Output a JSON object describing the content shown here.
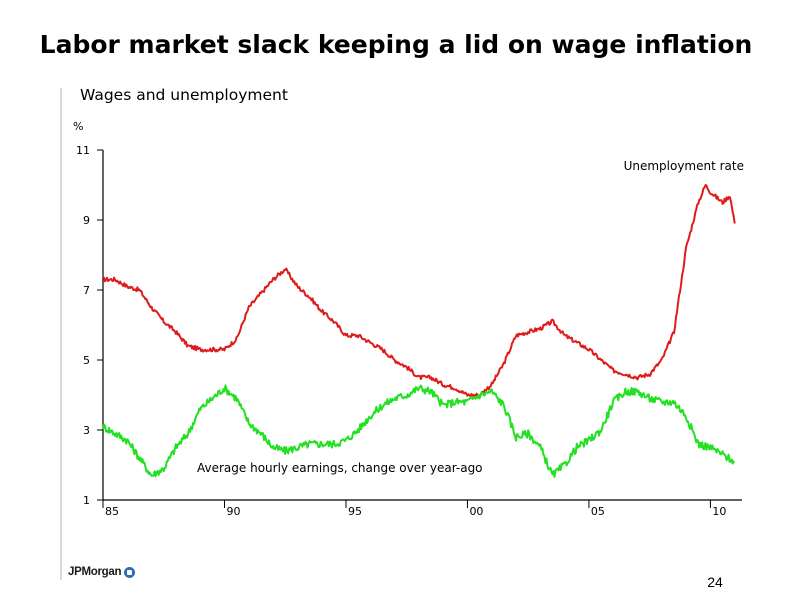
{
  "slide": {
    "title": "Labor market slack keeping a lid on wage inflation",
    "logo": "JPMorgan",
    "page_number": "24"
  },
  "colors": {
    "unemployment": "#e01b1b",
    "earnings": "#22e022",
    "axis": "#000000"
  },
  "chart_data": {
    "type": "line",
    "title": "Wages and unemployment",
    "ylabel": "%",
    "xlabel": "",
    "xlim": [
      1985,
      2011.3
    ],
    "ylim": [
      1,
      11
    ],
    "yticks": [
      1,
      3,
      5,
      7,
      9,
      11
    ],
    "xticks": [
      {
        "value": 1985,
        "label": "85"
      },
      {
        "value": 1990,
        "label": "90"
      },
      {
        "value": 1995,
        "label": "95"
      },
      {
        "value": 2000,
        "label": "00"
      },
      {
        "value": 2005,
        "label": "05"
      },
      {
        "value": 2010,
        "label": "10"
      }
    ],
    "grid": false,
    "series": [
      {
        "name": "Unemployment rate",
        "color": "#e01b1b",
        "x": [
          1985.0,
          1985.5,
          1986.0,
          1986.5,
          1987.0,
          1987.5,
          1988.0,
          1988.5,
          1989.0,
          1989.5,
          1990.0,
          1990.5,
          1991.0,
          1991.5,
          1992.0,
          1992.5,
          1993.0,
          1993.5,
          1994.0,
          1994.5,
          1995.0,
          1995.5,
          1996.0,
          1996.5,
          1997.0,
          1997.5,
          1998.0,
          1998.5,
          1999.0,
          1999.5,
          2000.0,
          2000.5,
          2001.0,
          2001.5,
          2002.0,
          2002.5,
          2003.0,
          2003.5,
          2004.0,
          2004.5,
          2005.0,
          2005.5,
          2006.0,
          2006.5,
          2007.0,
          2007.5,
          2008.0,
          2008.5,
          2009.0,
          2009.5,
          2009.8,
          2010.0,
          2010.5,
          2010.8,
          2011.0
        ],
        "y": [
          7.3,
          7.3,
          7.1,
          7.0,
          6.5,
          6.1,
          5.8,
          5.4,
          5.3,
          5.3,
          5.3,
          5.6,
          6.5,
          6.9,
          7.3,
          7.6,
          7.1,
          6.8,
          6.4,
          6.1,
          5.7,
          5.7,
          5.5,
          5.3,
          5.0,
          4.8,
          4.5,
          4.5,
          4.3,
          4.2,
          4.0,
          4.0,
          4.3,
          4.9,
          5.7,
          5.8,
          5.9,
          6.1,
          5.7,
          5.5,
          5.3,
          5.0,
          4.7,
          4.6,
          4.5,
          4.6,
          5.0,
          5.8,
          8.2,
          9.5,
          10.0,
          9.8,
          9.5,
          9.7,
          8.9
        ]
      },
      {
        "name": "Average hourly earnings, change over year-ago",
        "color": "#22e022",
        "x": [
          1985.0,
          1985.5,
          1986.0,
          1986.5,
          1987.0,
          1987.5,
          1988.0,
          1988.5,
          1989.0,
          1989.5,
          1990.0,
          1990.5,
          1991.0,
          1991.5,
          1992.0,
          1992.5,
          1993.0,
          1993.5,
          1994.0,
          1994.5,
          1995.0,
          1995.5,
          1996.0,
          1996.5,
          1997.0,
          1997.5,
          1998.0,
          1998.5,
          1999.0,
          1999.5,
          2000.0,
          2000.5,
          2001.0,
          2001.5,
          2002.0,
          2002.5,
          2003.0,
          2003.5,
          2004.0,
          2004.5,
          2005.0,
          2005.5,
          2006.0,
          2006.5,
          2007.0,
          2007.5,
          2008.0,
          2008.5,
          2009.0,
          2009.5,
          2010.0,
          2010.5,
          2011.0
        ],
        "y": [
          3.1,
          2.9,
          2.7,
          2.2,
          1.7,
          1.9,
          2.5,
          2.9,
          3.6,
          3.9,
          4.2,
          3.9,
          3.2,
          2.9,
          2.5,
          2.4,
          2.5,
          2.6,
          2.6,
          2.6,
          2.7,
          3.0,
          3.4,
          3.7,
          3.9,
          4.0,
          4.2,
          4.1,
          3.7,
          3.8,
          3.8,
          4.0,
          4.1,
          3.7,
          2.8,
          2.9,
          2.5,
          1.7,
          2.0,
          2.5,
          2.7,
          3.0,
          3.8,
          4.1,
          4.1,
          3.9,
          3.8,
          3.8,
          3.4,
          2.6,
          2.5,
          2.3,
          2.1
        ]
      }
    ],
    "annotations": [
      {
        "series": 0,
        "text": "Unemployment rate",
        "position": "top-right"
      },
      {
        "series": 1,
        "text": "Average hourly earnings, change over year-ago",
        "position": "bottom-center"
      }
    ]
  }
}
